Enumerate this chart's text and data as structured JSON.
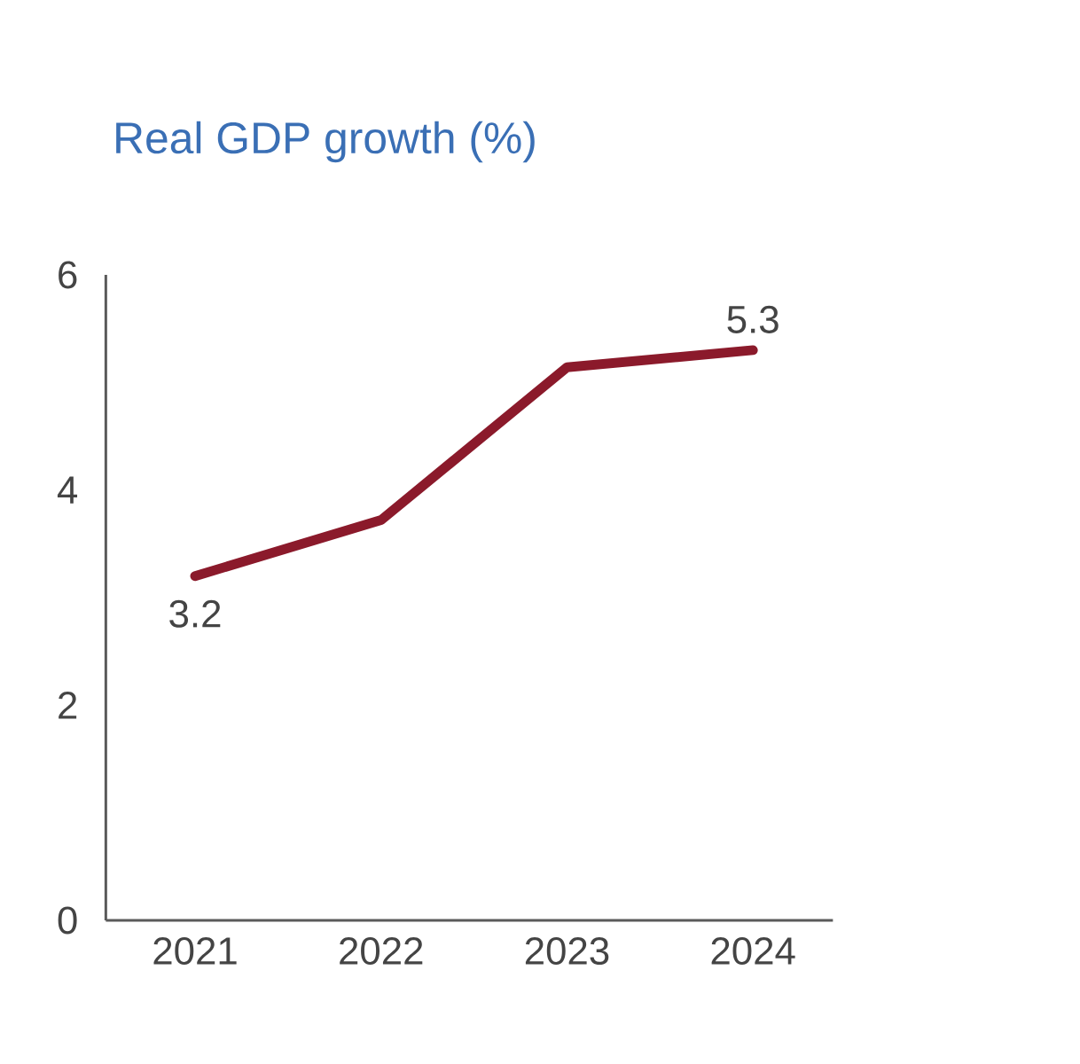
{
  "chart_data": {
    "type": "line",
    "title": "Real GDP growth (%)",
    "categories": [
      "2021",
      "2022",
      "2023",
      "2024"
    ],
    "values": [
      3.2,
      3.72,
      5.14,
      5.3
    ],
    "value_labels": [
      "3.2",
      null,
      null,
      "5.3"
    ],
    "color": "#8b1a2b",
    "ylim": [
      0,
      6
    ],
    "yticks": [
      0,
      2,
      4,
      6
    ],
    "grid": false,
    "marker": "none",
    "line_style": "solid"
  }
}
